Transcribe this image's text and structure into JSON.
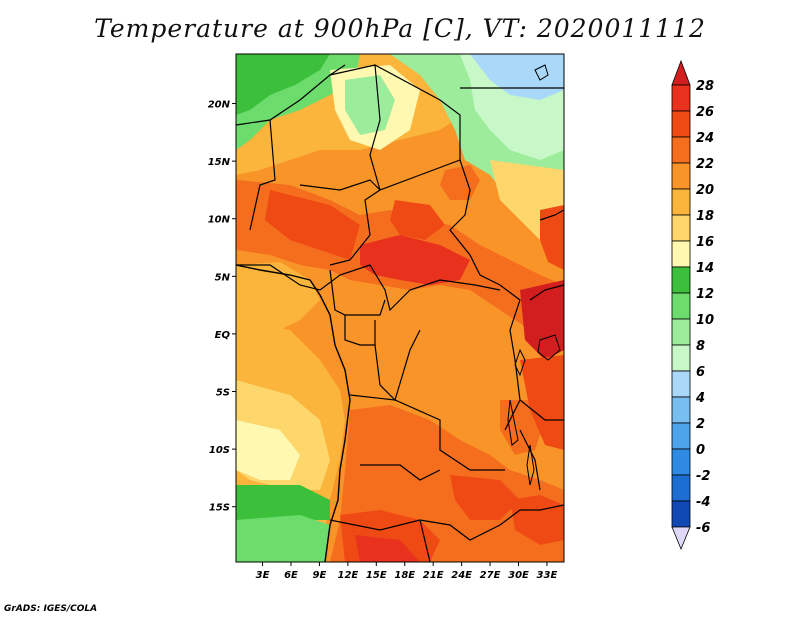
{
  "title": "Temperature at 900hPa [C], VT: 2020011112",
  "credit": "GrADS: IGES/COLA",
  "map": {
    "lat_ticks": [
      {
        "label": "20N",
        "lat": 20
      },
      {
        "label": "15N",
        "lat": 15
      },
      {
        "label": "10N",
        "lat": 10
      },
      {
        "label": "5N",
        "lat": 5
      },
      {
        "label": "EQ",
        "lat": 0
      },
      {
        "label": "5S",
        "lat": -5
      },
      {
        "label": "10S",
        "lat": -10
      },
      {
        "label": "15S",
        "lat": -15
      }
    ],
    "lon_ticks": [
      {
        "label": "3E",
        "lon": 3
      },
      {
        "label": "6E",
        "lon": 6
      },
      {
        "label": "9E",
        "lon": 9
      },
      {
        "label": "12E",
        "lon": 12
      },
      {
        "label": "15E",
        "lon": 15
      },
      {
        "label": "18E",
        "lon": 18
      },
      {
        "label": "21E",
        "lon": 21
      },
      {
        "label": "24E",
        "lon": 24
      },
      {
        "label": "27E",
        "lon": 27
      },
      {
        "label": "30E",
        "lon": 30
      },
      {
        "label": "33E",
        "lon": 33
      }
    ],
    "lon_range": [
      0.2,
      34.8
    ],
    "lat_range": [
      -19.8,
      24.3
    ]
  },
  "colorbar": {
    "labels": [
      "28",
      "26",
      "24",
      "22",
      "20",
      "18",
      "16",
      "14",
      "12",
      "10",
      "8",
      "6",
      "4",
      "2",
      "0",
      "-2",
      "-4",
      "-6"
    ],
    "colors": [
      "#e8321e",
      "#f04a14",
      "#f46e1e",
      "#f99428",
      "#fbb43c",
      "#fdd66c",
      "#fef8b0",
      "#3cc03c",
      "#6cdc6c",
      "#9cec9c",
      "#c8f8c8",
      "#aad8f8",
      "#78bef0",
      "#4ea4ea",
      "#2e8ae2",
      "#1c6ed2",
      "#1048b4",
      "#0c2488"
    ],
    "top_arrow_color": "#d21e1e",
    "bottom_arrow_color": "#e0d8f8"
  }
}
